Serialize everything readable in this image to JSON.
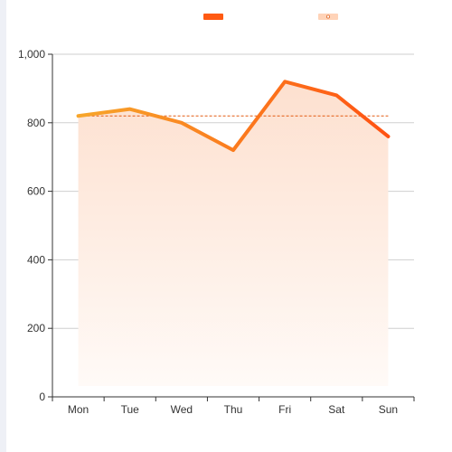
{
  "chart_data": {
    "type": "line",
    "categories": [
      "Mon",
      "Tue",
      "Wed",
      "Thu",
      "Fri",
      "Sat",
      "Sun"
    ],
    "series": [
      {
        "values": [
          820,
          840,
          800,
          720,
          920,
          880,
          760
        ]
      }
    ],
    "average_line": 820,
    "ylim": [
      0,
      1000
    ],
    "y_ticks": [
      0,
      200,
      400,
      600,
      800,
      1000
    ],
    "y_tick_labels": [
      "0",
      "200",
      "400",
      "600",
      "800",
      "1,000"
    ],
    "grid": true,
    "legend_position": "top-center",
    "legend": [
      {
        "color": "#ff5a12",
        "symbol": "bar"
      },
      {
        "color": "#ffd3b8",
        "symbol": "bar-with-dot"
      }
    ],
    "colors": {
      "line_start": "#f7a62b",
      "line_end": "#ff5212",
      "area_top": "#fde0cf",
      "area_bottom": "#fffaf7",
      "avg_line": "#e45a10",
      "grid": "#cfcfcf",
      "axis": "#333333"
    }
  }
}
